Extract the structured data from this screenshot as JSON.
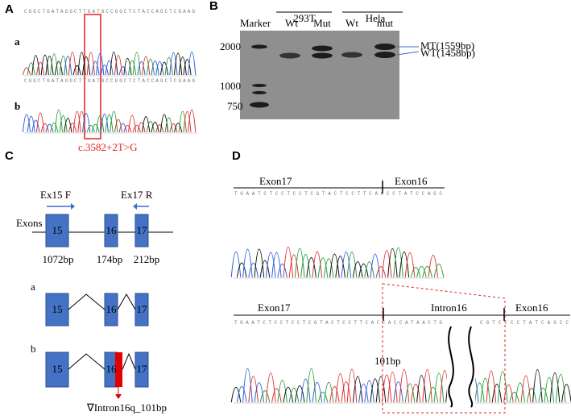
{
  "panels": {
    "A": {
      "label": "A",
      "rows": [
        "a",
        "b"
      ],
      "sequence": "CGGCTGATAGGCTTGATGCCGGCTCTACCAGCTCGAAG",
      "mutation": "c.3582+2T>G"
    },
    "B": {
      "label": "B",
      "marker_label": "Marker",
      "groups": [
        {
          "name": "293T",
          "lanes": [
            "Wt",
            "Mut"
          ]
        },
        {
          "name": "Hela",
          "lanes": [
            "Wt",
            "mut"
          ]
        }
      ],
      "marker_sizes": [
        "2000",
        "1000",
        "750"
      ],
      "bands": [
        "MT(1559bp)",
        "WT(1458bp)"
      ]
    },
    "C": {
      "label": "C",
      "primers": [
        "Ex15 F",
        "Ex17 R"
      ],
      "track_label": "Exons",
      "exons": [
        "15",
        "16",
        "17"
      ],
      "sizes": [
        "1072bp",
        "174bp",
        "212bp"
      ],
      "isoforms": [
        "a",
        "b"
      ],
      "insert_label": "∇Intron16q_101bp"
    },
    "D": {
      "label": "D",
      "top": {
        "regions": [
          "Exon17",
          "Exon16"
        ],
        "sequence": "TGAATCTCCTCCTCGTACTCCTTCACCCTATCCAGC"
      },
      "bottom": {
        "regions": [
          "Exon17",
          "Intron16",
          "Exon16"
        ],
        "sequence": "TGAATCTCCTCCTCGTACTCCTTCACCACCATAACTG",
        "sequence2": "CGTCCCCTATCAGCC",
        "insert_label": "101bp"
      }
    }
  }
}
